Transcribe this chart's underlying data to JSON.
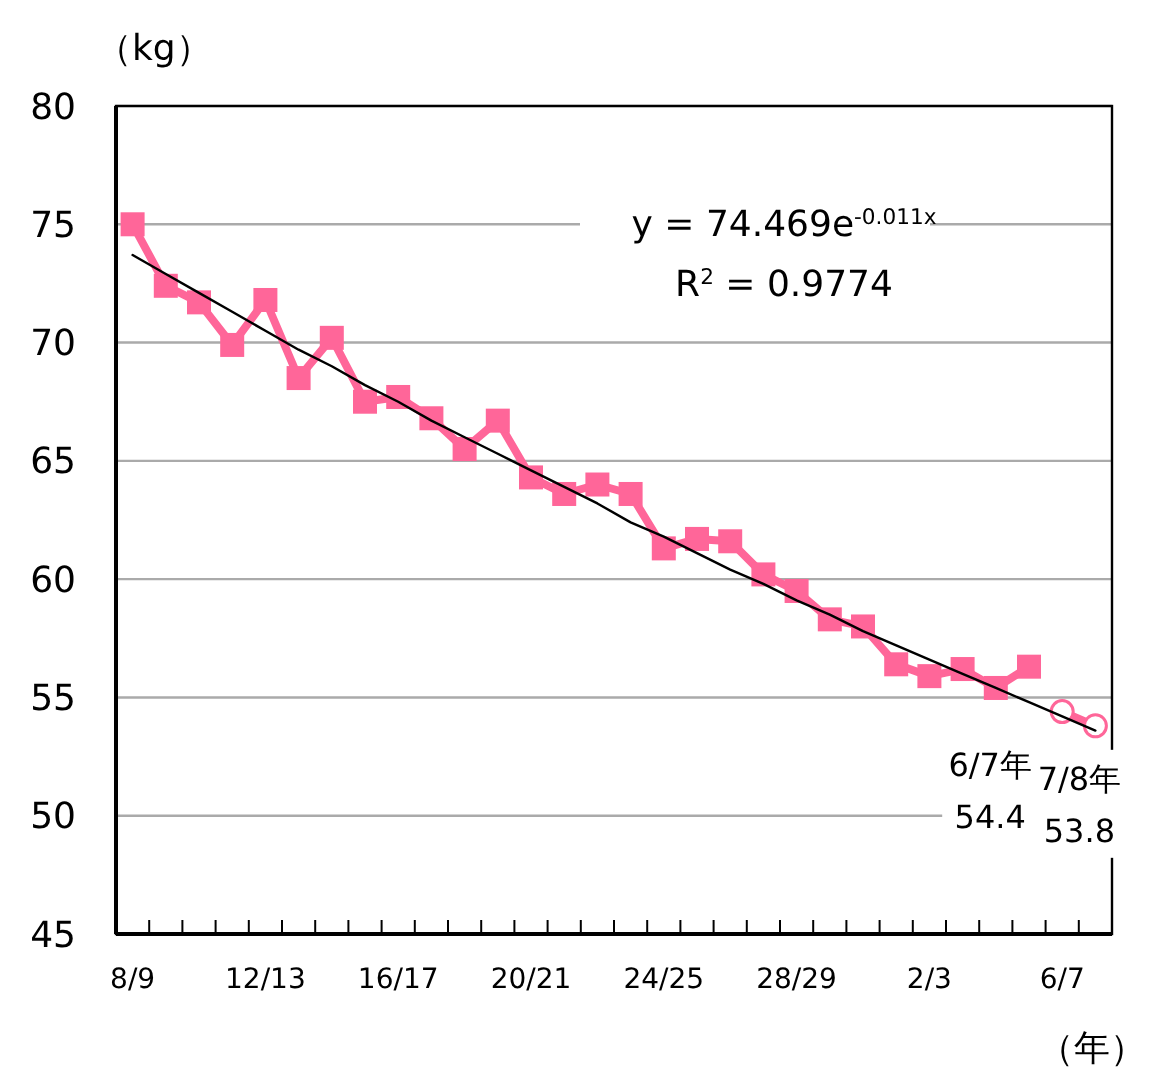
{
  "chart_data": {
    "type": "line",
    "ylabel": "（kg）",
    "xlabel": "（年）",
    "categories": [
      "8/9",
      null,
      null,
      null,
      "12/13",
      null,
      null,
      null,
      "16/17",
      null,
      null,
      null,
      "20/21",
      null,
      null,
      null,
      "24/25",
      null,
      null,
      null,
      "28/29",
      null,
      null,
      null,
      "2/3",
      null,
      null,
      null,
      "6/7",
      null
    ],
    "ylim": [
      45,
      80
    ],
    "yticks": [
      45,
      50,
      55,
      60,
      65,
      70,
      75,
      80
    ],
    "grid": "y",
    "series": [
      {
        "color": "#ff6699",
        "marker": "square",
        "values": [
          75.0,
          72.4,
          71.7,
          69.9,
          71.8,
          68.5,
          70.2,
          67.5,
          67.7,
          66.8,
          65.5,
          66.7,
          64.3,
          63.6,
          64.0,
          63.6,
          61.3,
          61.7,
          61.6,
          60.2,
          59.5,
          58.3,
          58.0,
          56.4,
          55.9,
          56.2,
          55.4,
          56.3,
          null,
          null
        ]
      },
      {
        "color": "#ff6699",
        "marker": "circle",
        "values": [
          null,
          null,
          null,
          null,
          null,
          null,
          null,
          null,
          null,
          null,
          null,
          null,
          null,
          null,
          null,
          null,
          null,
          null,
          null,
          null,
          null,
          null,
          null,
          null,
          null,
          null,
          null,
          null,
          54.4,
          53.8
        ],
        "value_labels": [
          null,
          null,
          null,
          null,
          null,
          null,
          null,
          null,
          null,
          null,
          null,
          null,
          null,
          null,
          null,
          null,
          null,
          null,
          null,
          null,
          null,
          null,
          null,
          null,
          null,
          null,
          null,
          null,
          "54.4",
          "53.8"
        ]
      },
      {
        "color": "#000000",
        "marker": "none",
        "values": [
          73.7,
          72.9,
          72.1,
          71.3,
          70.5,
          69.7,
          69.0,
          68.2,
          67.5,
          66.7,
          66.0,
          65.3,
          64.6,
          63.9,
          63.2,
          62.4,
          61.8,
          61.1,
          60.4,
          59.8,
          59.1,
          58.5,
          57.8,
          57.2,
          56.6,
          56.0,
          55.4,
          54.8,
          54.2,
          53.6
        ]
      }
    ],
    "annotations": [
      "y = 74.469e$^{-0.011x}$",
      "R$^{2}$ = 0.9774",
      "6/7年",
      "7/8年"
    ]
  }
}
